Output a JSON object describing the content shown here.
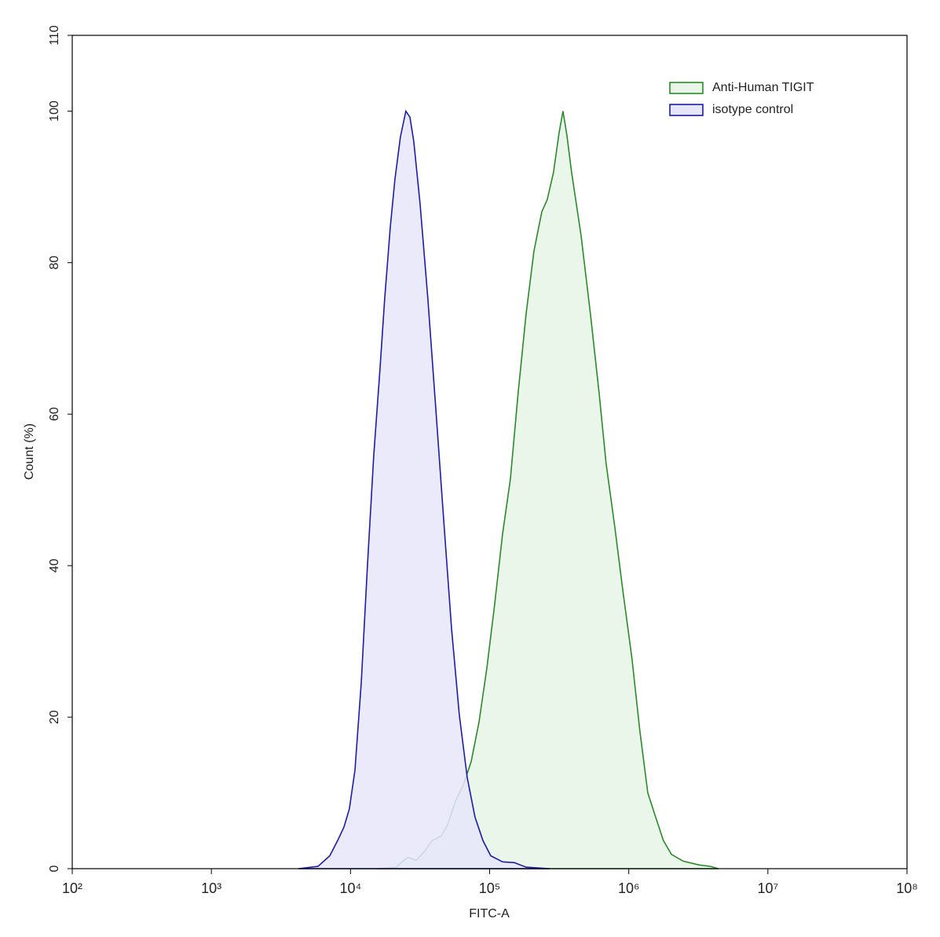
{
  "chart_data": {
    "type": "histogram-overlay",
    "x_label": "FITC-A",
    "y_label": "Count  (%)",
    "xlog": true,
    "xlim": [
      100,
      100000000
    ],
    "xticks": [
      {
        "value": 100,
        "label": "10²"
      },
      {
        "value": 1000,
        "label": "10³"
      },
      {
        "value": 10000,
        "label": "10⁴"
      },
      {
        "value": 100000,
        "label": "10⁵"
      },
      {
        "value": 1000000,
        "label": "10⁶"
      },
      {
        "value": 10000000,
        "label": "10⁷"
      },
      {
        "value": 100000000,
        "label": "10⁸"
      }
    ],
    "ylim": [
      0,
      110
    ],
    "yticks": [
      0,
      20,
      40,
      60,
      80,
      100,
      110
    ],
    "legend": "top-right",
    "series": [
      {
        "name": "Anti-Human TIGIT",
        "color": "#2a8a2a",
        "fill": "#e8f5e8",
        "x": [
          15490,
          21420,
          23440,
          26000,
          29650,
          33730,
          38460,
          44870,
          49870,
          56750,
          64570,
          73620,
          83750,
          95500,
          108600,
          123900,
          140900,
          160300,
          182800,
          208000,
          237100,
          259400,
          287700,
          315500,
          336500,
          359100,
          388200,
          453900,
          530900,
          612300,
          687100,
          794300,
          903600,
          1057000,
          1202000,
          1371000,
          1560000,
          1774000,
          2023000,
          2460000,
          3184000,
          3873000,
          4406000
        ],
        "values": [
          0,
          0.2,
          0.9,
          1.5,
          1.1,
          2.2,
          3.7,
          4.3,
          5.8,
          8.9,
          11,
          14.1,
          19.3,
          26.5,
          34.8,
          44.2,
          51.4,
          62.8,
          73.2,
          81.5,
          86.7,
          88.3,
          91.9,
          97.1,
          100,
          96.8,
          91.9,
          83.6,
          73.2,
          62.8,
          53.5,
          45.1,
          36.9,
          27.6,
          18.2,
          10,
          6.8,
          3.7,
          1.9,
          1,
          0.5,
          0.3,
          0
        ]
      },
      {
        "name": "isotype control",
        "color": "#1c1ca8",
        "fill": "#e6e6fa",
        "x": [
          4217,
          5834,
          7096,
          8076,
          8974,
          9817,
          10760,
          11940,
          13240,
          14690,
          16290,
          17620,
          19310,
          20850,
          22860,
          25000,
          26720,
          28510,
          31620,
          35970,
          41020,
          46670,
          53210,
          60530,
          69020,
          78520,
          89540,
          101800,
          123900,
          150300,
          182800,
          269800
        ],
        "values": [
          0,
          0.3,
          1.7,
          3.7,
          5.5,
          7.9,
          13,
          24.5,
          40,
          54.5,
          66,
          75.3,
          84.7,
          91,
          96.6,
          100,
          99.2,
          96,
          87.8,
          75.3,
          60.8,
          46.2,
          31.7,
          20.3,
          12,
          6.8,
          3.7,
          1.7,
          0.9,
          0.8,
          0.2,
          0
        ]
      }
    ]
  }
}
